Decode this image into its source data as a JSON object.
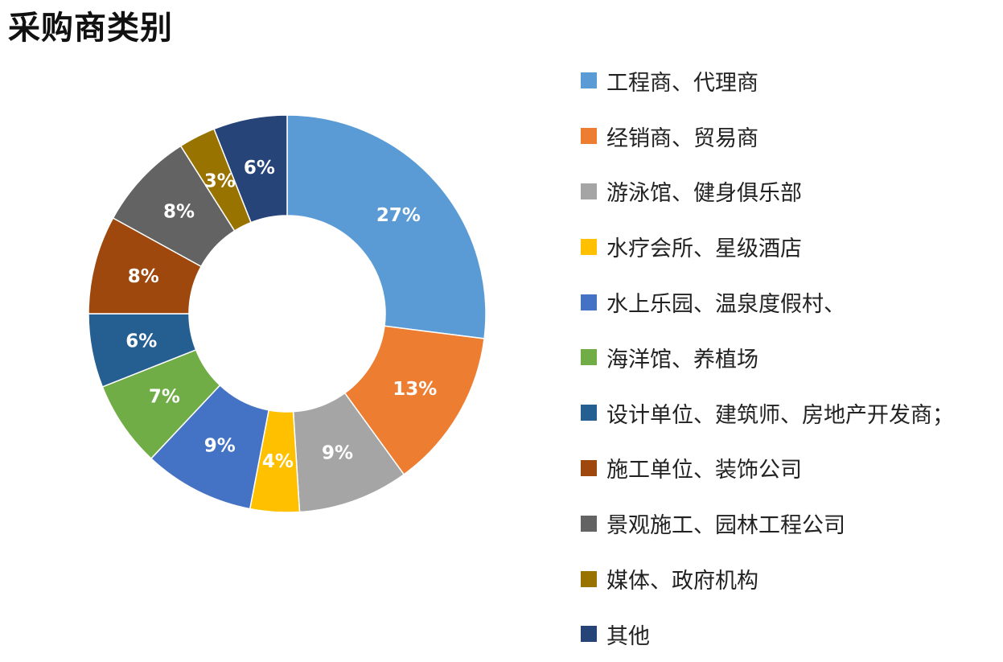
{
  "title": "采购商类别",
  "chart_data": {
    "type": "pie",
    "donut": true,
    "legend_position": "right",
    "start": "top, clockwise",
    "slices": [
      {
        "label": "工程商、代理商",
        "value": 27,
        "value_label": "27%",
        "color": "#5B9BD5"
      },
      {
        "label": "经销商、贸易商",
        "value": 13,
        "value_label": "13%",
        "color": "#ED7D31"
      },
      {
        "label": "游泳馆、健身俱乐部",
        "value": 9,
        "value_label": "9%",
        "color": "#A5A5A5"
      },
      {
        "label": "水疗会所、星级酒店",
        "value": 4,
        "value_label": "4%",
        "color": "#FFC000"
      },
      {
        "label": "水上乐园、温泉度假村、",
        "value": 9,
        "value_label": "9%",
        "color": "#4472C4"
      },
      {
        "label": "海洋馆、养植场",
        "value": 7,
        "value_label": "7%",
        "color": "#70AD47"
      },
      {
        "label": "设计单位、建筑师、房地产开发商；",
        "value": 6,
        "value_label": "6%",
        "color": "#255E91"
      },
      {
        "label": "施工单位、装饰公司",
        "value": 8,
        "value_label": "8%",
        "color": "#9E480E"
      },
      {
        "label": "景观施工、园林工程公司",
        "value": 8,
        "value_label": "8%",
        "color": "#636363"
      },
      {
        "label": "媒体、政府机构",
        "value": 3,
        "value_label": "3%",
        "color": "#997300"
      },
      {
        "label": "其他",
        "value": 6,
        "value_label": "6%",
        "color": "#264478"
      }
    ]
  }
}
